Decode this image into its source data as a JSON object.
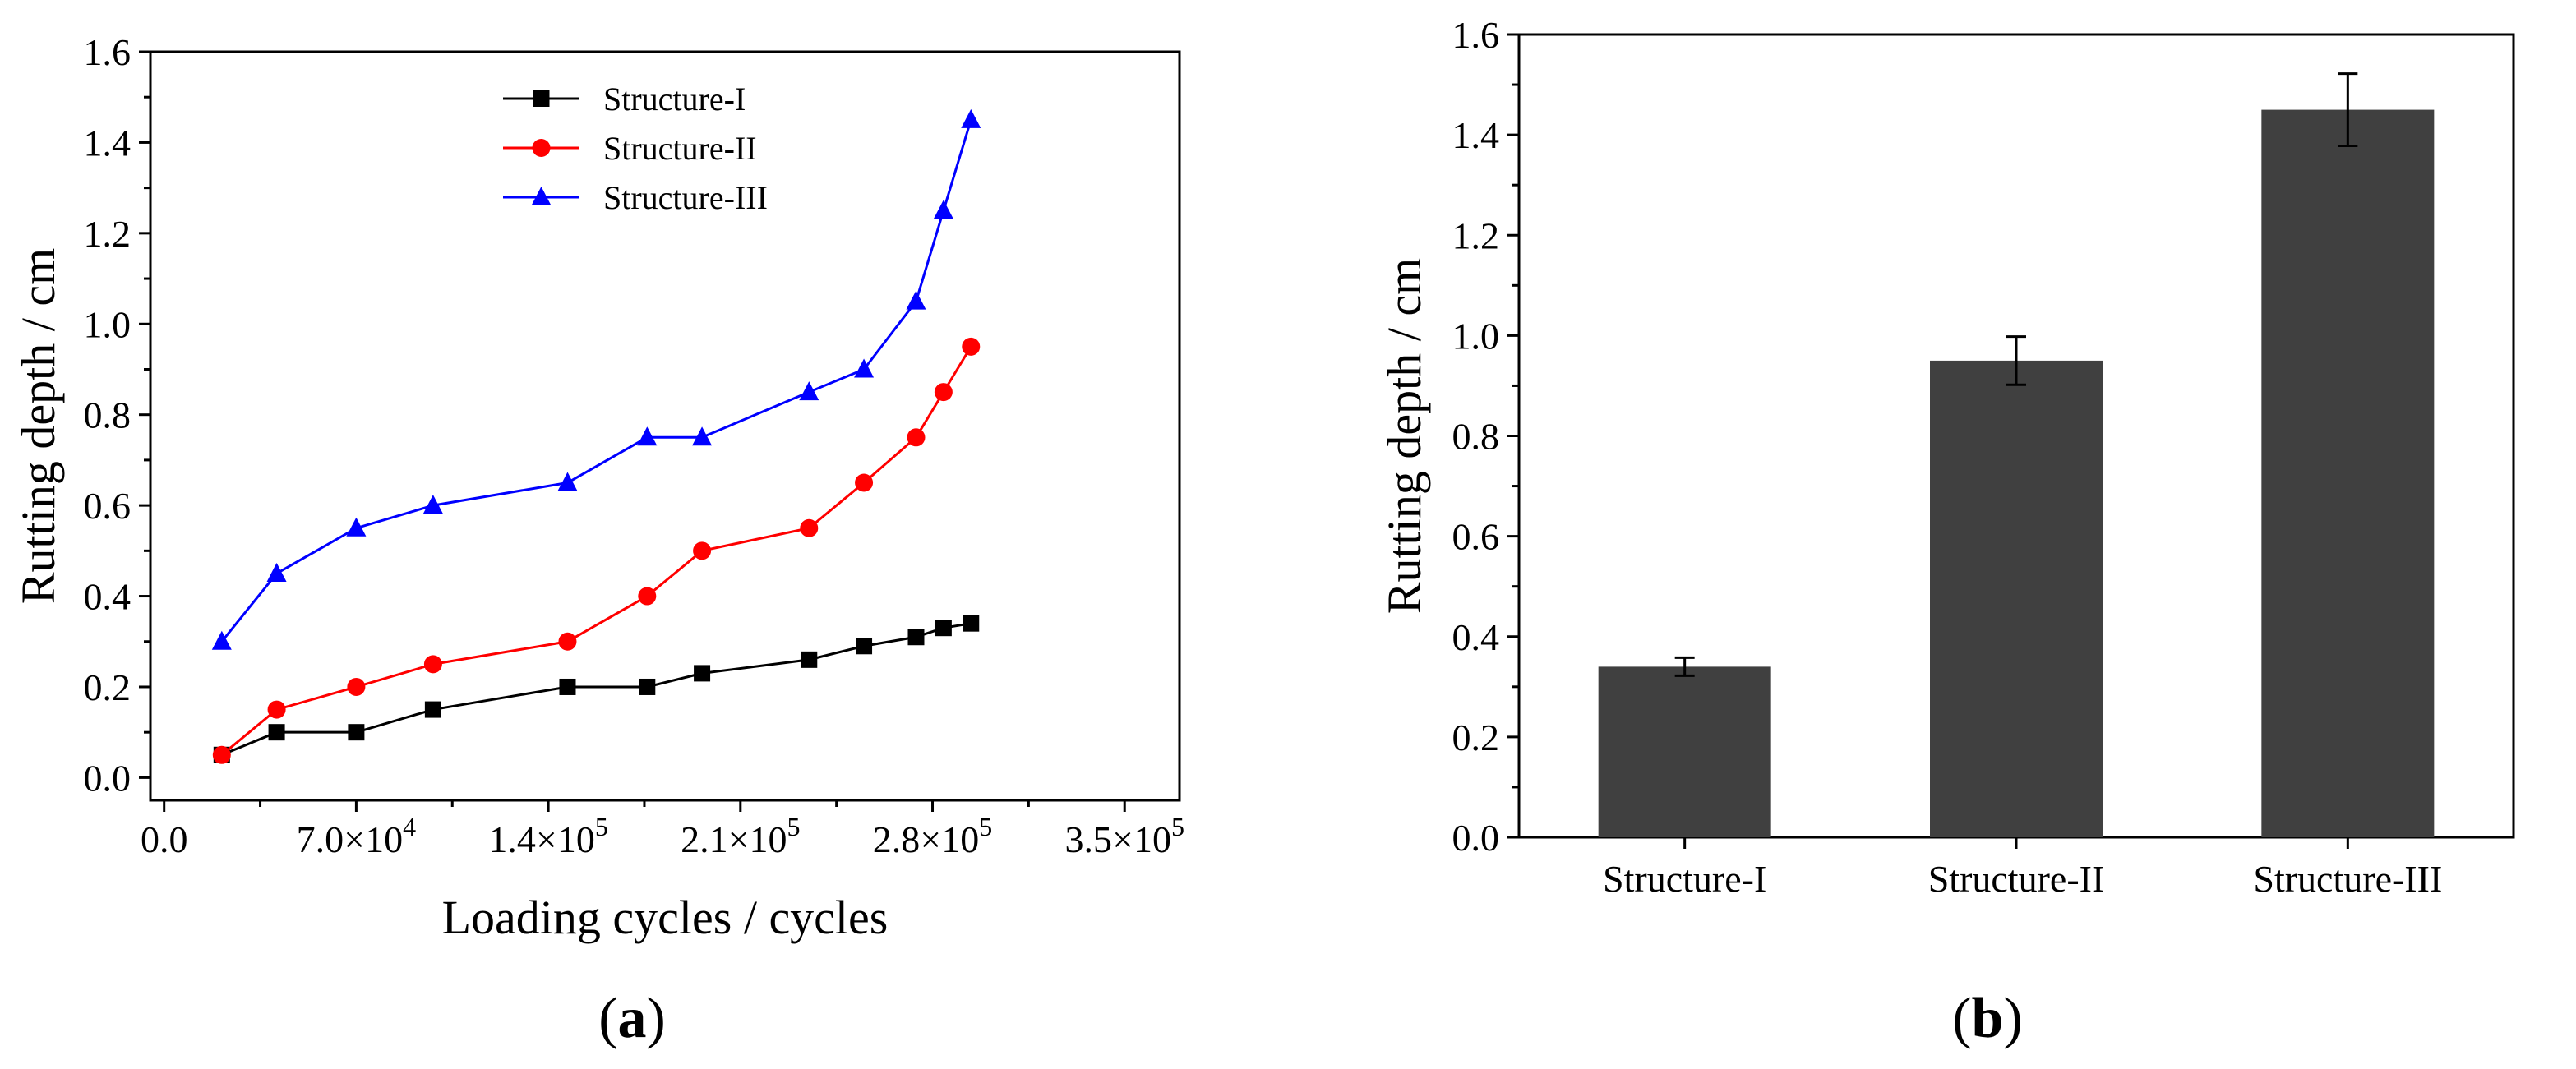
{
  "chart_data": [
    {
      "type": "line",
      "panel_label": "(a)",
      "panel_letter": "a",
      "xlabel": "Loading cycles / cycles",
      "ylabel": "Rutting depth / cm",
      "xlim": [
        -5000,
        370000
      ],
      "ylim": [
        -0.05,
        1.6
      ],
      "xticks": [
        {
          "value": 0,
          "mantissa": "0.0",
          "exp": ""
        },
        {
          "value": 70000,
          "mantissa": "7.0×10",
          "exp": "4"
        },
        {
          "value": 140000,
          "mantissa": "1.4×10",
          "exp": "5"
        },
        {
          "value": 210000,
          "mantissa": "2.1×10",
          "exp": "5"
        },
        {
          "value": 280000,
          "mantissa": "2.8×10",
          "exp": "5"
        },
        {
          "value": 350000,
          "mantissa": "3.5×10",
          "exp": "5"
        }
      ],
      "yticks": [
        {
          "value": 0.0,
          "label": "0.0"
        },
        {
          "value": 0.2,
          "label": "0.2"
        },
        {
          "value": 0.4,
          "label": "0.4"
        },
        {
          "value": 0.6,
          "label": "0.6"
        },
        {
          "value": 0.8,
          "label": "0.8"
        },
        {
          "value": 1.0,
          "label": "1.0"
        },
        {
          "value": 1.2,
          "label": "1.2"
        },
        {
          "value": 1.4,
          "label": "1.4"
        },
        {
          "value": 1.6,
          "label": "1.6"
        }
      ],
      "legend_position": "top-center",
      "grid": false,
      "x": [
        21000,
        41000,
        70000,
        98000,
        147000,
        176000,
        196000,
        235000,
        255000,
        274000,
        284000,
        294000
      ],
      "series": [
        {
          "name": "Structure-I",
          "color": "#000000",
          "marker": "square",
          "values": [
            0.05,
            0.1,
            0.1,
            0.15,
            0.2,
            0.2,
            0.23,
            0.26,
            0.29,
            0.31,
            0.33,
            0.34
          ]
        },
        {
          "name": "Structure-II",
          "color": "#ff0000",
          "marker": "circle",
          "values": [
            0.05,
            0.15,
            0.2,
            0.25,
            0.3,
            0.4,
            0.5,
            0.55,
            0.65,
            0.75,
            0.85,
            0.95
          ]
        },
        {
          "name": "Structure-III",
          "color": "#0000ff",
          "marker": "triangle",
          "values": [
            0.3,
            0.45,
            0.55,
            0.6,
            0.65,
            0.75,
            0.75,
            0.85,
            0.9,
            1.05,
            1.25,
            1.45
          ]
        }
      ]
    },
    {
      "type": "bar",
      "panel_label": "(b)",
      "panel_letter": "b",
      "xlabel": "",
      "ylabel": "Rutting depth / cm",
      "ylim": [
        0,
        1.6
      ],
      "yticks": [
        {
          "value": 0.0,
          "label": "0.0"
        },
        {
          "value": 0.2,
          "label": "0.2"
        },
        {
          "value": 0.4,
          "label": "0.4"
        },
        {
          "value": 0.6,
          "label": "0.6"
        },
        {
          "value": 0.8,
          "label": "0.8"
        },
        {
          "value": 1.0,
          "label": "1.0"
        },
        {
          "value": 1.2,
          "label": "1.2"
        },
        {
          "value": 1.4,
          "label": "1.4"
        },
        {
          "value": 1.6,
          "label": "1.6"
        }
      ],
      "grid": false,
      "bar_color": "#404040",
      "categories": [
        "Structure-I",
        "Structure-II",
        "Structure-III"
      ],
      "values": [
        0.34,
        0.95,
        1.45
      ],
      "errors": [
        0.018,
        0.048,
        0.072
      ]
    }
  ]
}
